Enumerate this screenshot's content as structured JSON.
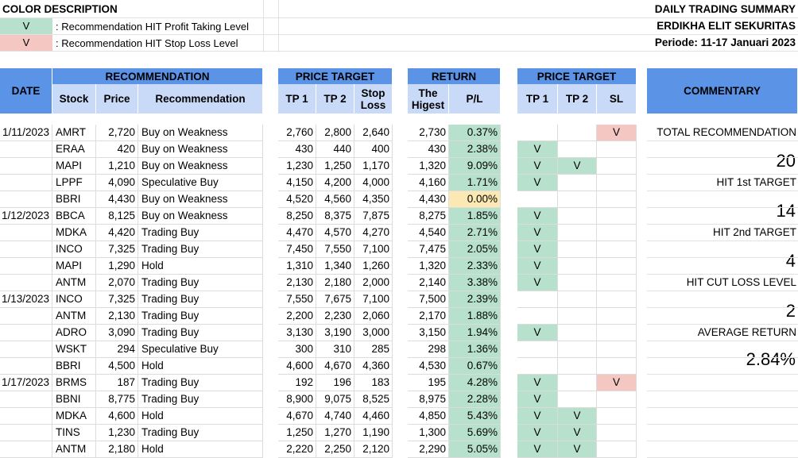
{
  "color_description": {
    "title": "COLOR DESCRIPTION",
    "items": [
      {
        "mark": "V",
        "text": ": Recommendation HIT Profit Taking Level",
        "color": "#b7e1cd"
      },
      {
        "mark": "V",
        "text": ": Recommendation HIT Stop Loss Level",
        "color": "#f4c7c3"
      }
    ]
  },
  "report": {
    "title": "DAILY TRADING SUMMARY",
    "company": "ERDIKHA ELIT SEKURITAS",
    "period": "Periode: 11-17 Januari 2023"
  },
  "headers": {
    "date": "DATE",
    "recommendation_group": "RECOMMENDATION",
    "stock": "Stock",
    "price": "Price",
    "recommendation": "Recommendation",
    "price_target_group": "PRICE TARGET",
    "tp1": "TP 1",
    "tp2": "TP 2",
    "stop_loss": "Stop Loss",
    "return_group": "RETURN",
    "highest": "The Higest",
    "pl": "P/L",
    "price_target_group2": "PRICE TARGET",
    "hit_tp1": "TP 1",
    "hit_tp2": "TP 2",
    "hit_sl": "SL",
    "commentary": "COMMENTARY"
  },
  "colors": {
    "header_blue": "#5b93e6",
    "subheader_blue": "#c9daf8",
    "hit_green": "#b7e1cd",
    "hit_red": "#f4c7c3",
    "neutral_yellow": "#fce8b2"
  },
  "rows": [
    {
      "date": "1/11/2023",
      "stock": "AMRT",
      "price": "2,720",
      "rec": "Buy on Weakness",
      "tp1": "2,760",
      "tp2": "2,800",
      "sl": "2,640",
      "high": "2,730",
      "pl": "0.37%",
      "pl_color": "green",
      "h1": "",
      "h2": "",
      "hs": "V"
    },
    {
      "date": "",
      "stock": "ERAA",
      "price": "420",
      "rec": "Buy on Weakness",
      "tp1": "430",
      "tp2": "440",
      "sl": "400",
      "high": "430",
      "pl": "2.38%",
      "pl_color": "green",
      "h1": "V",
      "h2": "",
      "hs": ""
    },
    {
      "date": "",
      "stock": "MAPI",
      "price": "1,210",
      "rec": "Buy on Weakness",
      "tp1": "1,230",
      "tp2": "1,250",
      "sl": "1,170",
      "high": "1,320",
      "pl": "9.09%",
      "pl_color": "green",
      "h1": "V",
      "h2": "V",
      "hs": ""
    },
    {
      "date": "",
      "stock": "LPPF",
      "price": "4,090",
      "rec": "Speculative Buy",
      "tp1": "4,150",
      "tp2": "4,200",
      "sl": "4,000",
      "high": "4,160",
      "pl": "1.71%",
      "pl_color": "green",
      "h1": "V",
      "h2": "",
      "hs": ""
    },
    {
      "date": "",
      "stock": "BBRI",
      "price": "4,430",
      "rec": "Buy on Weakness",
      "tp1": "4,520",
      "tp2": "4,560",
      "sl": "4,350",
      "high": "4,430",
      "pl": "0.00%",
      "pl_color": "yellow",
      "h1": "",
      "h2": "",
      "hs": ""
    },
    {
      "date": "1/12/2023",
      "stock": "BBCA",
      "price": "8,125",
      "rec": "Buy on Weakness",
      "tp1": "8,250",
      "tp2": "8,375",
      "sl": "7,875",
      "high": "8,275",
      "pl": "1.85%",
      "pl_color": "green",
      "h1": "V",
      "h2": "",
      "hs": ""
    },
    {
      "date": "",
      "stock": "MDKA",
      "price": "4,420",
      "rec": "Trading Buy",
      "tp1": "4,470",
      "tp2": "4,570",
      "sl": "4,270",
      "high": "4,540",
      "pl": "2.71%",
      "pl_color": "green",
      "h1": "V",
      "h2": "",
      "hs": ""
    },
    {
      "date": "",
      "stock": "INCO",
      "price": "7,325",
      "rec": "Trading Buy",
      "tp1": "7,450",
      "tp2": "7,550",
      "sl": "7,100",
      "high": "7,475",
      "pl": "2.05%",
      "pl_color": "green",
      "h1": "V",
      "h2": "",
      "hs": ""
    },
    {
      "date": "",
      "stock": "MAPI",
      "price": "1,290",
      "rec": "Hold",
      "tp1": "1,310",
      "tp2": "1,340",
      "sl": "1,260",
      "high": "1,320",
      "pl": "2.33%",
      "pl_color": "green",
      "h1": "V",
      "h2": "",
      "hs": ""
    },
    {
      "date": "",
      "stock": "ANTM",
      "price": "2,070",
      "rec": "Trading Buy",
      "tp1": "2,130",
      "tp2": "2,180",
      "sl": "2,000",
      "high": "2,140",
      "pl": "3.38%",
      "pl_color": "green",
      "h1": "V",
      "h2": "",
      "hs": ""
    },
    {
      "date": "1/13/2023",
      "stock": "INCO",
      "price": "7,325",
      "rec": "Trading Buy",
      "tp1": "7,550",
      "tp2": "7,675",
      "sl": "7,100",
      "high": "7,500",
      "pl": "2.39%",
      "pl_color": "green",
      "h1": "",
      "h2": "",
      "hs": ""
    },
    {
      "date": "",
      "stock": "ANTM",
      "price": "2,130",
      "rec": "Trading Buy",
      "tp1": "2,200",
      "tp2": "2,230",
      "sl": "2,060",
      "high": "2,170",
      "pl": "1.88%",
      "pl_color": "green",
      "h1": "",
      "h2": "",
      "hs": ""
    },
    {
      "date": "",
      "stock": "ADRO",
      "price": "3,090",
      "rec": "Trading Buy",
      "tp1": "3,130",
      "tp2": "3,190",
      "sl": "3,000",
      "high": "3,150",
      "pl": "1.94%",
      "pl_color": "green",
      "h1": "V",
      "h2": "",
      "hs": ""
    },
    {
      "date": "",
      "stock": "WSKT",
      "price": "294",
      "rec": "Speculative Buy",
      "tp1": "300",
      "tp2": "310",
      "sl": "285",
      "high": "298",
      "pl": "1.36%",
      "pl_color": "green",
      "h1": "",
      "h2": "",
      "hs": ""
    },
    {
      "date": "",
      "stock": "BBRI",
      "price": "4,500",
      "rec": "Hold",
      "tp1": "4,600",
      "tp2": "4,670",
      "sl": "4,360",
      "high": "4,530",
      "pl": "0.67%",
      "pl_color": "green",
      "h1": "",
      "h2": "",
      "hs": ""
    },
    {
      "date": "1/17/2023",
      "stock": "BRMS",
      "price": "187",
      "rec": "Trading Buy",
      "tp1": "192",
      "tp2": "196",
      "sl": "183",
      "high": "195",
      "pl": "4.28%",
      "pl_color": "green",
      "h1": "V",
      "h2": "",
      "hs": "V"
    },
    {
      "date": "",
      "stock": "BBNI",
      "price": "8,775",
      "rec": "Trading Buy",
      "tp1": "8,900",
      "tp2": "9,075",
      "sl": "8,525",
      "high": "8,975",
      "pl": "2.28%",
      "pl_color": "green",
      "h1": "V",
      "h2": "",
      "hs": ""
    },
    {
      "date": "",
      "stock": "MDKA",
      "price": "4,600",
      "rec": "Hold",
      "tp1": "4,670",
      "tp2": "4,740",
      "sl": "4,460",
      "high": "4,850",
      "pl": "5.43%",
      "pl_color": "green",
      "h1": "V",
      "h2": "V",
      "hs": ""
    },
    {
      "date": "",
      "stock": "TINS",
      "price": "1,230",
      "rec": "Trading Buy",
      "tp1": "1,250",
      "tp2": "1,270",
      "sl": "1,190",
      "high": "1,300",
      "pl": "5.69%",
      "pl_color": "green",
      "h1": "V",
      "h2": "V",
      "hs": ""
    },
    {
      "date": "",
      "stock": "ANTM",
      "price": "2,180",
      "rec": "Hold",
      "tp1": "2,220",
      "tp2": "2,250",
      "sl": "2,120",
      "high": "2,290",
      "pl": "5.05%",
      "pl_color": "green",
      "h1": "V",
      "h2": "V",
      "hs": ""
    }
  ],
  "commentary": [
    {
      "label": "TOTAL RECOMMENDATION",
      "value": "20"
    },
    {
      "label": "HIT 1st TARGET",
      "value": "14"
    },
    {
      "label": "HIT 2nd TARGET",
      "value": "4"
    },
    {
      "label": "HIT CUT LOSS LEVEL",
      "value": "2"
    },
    {
      "label": "AVERAGE RETURN",
      "value": "2.84%"
    }
  ]
}
